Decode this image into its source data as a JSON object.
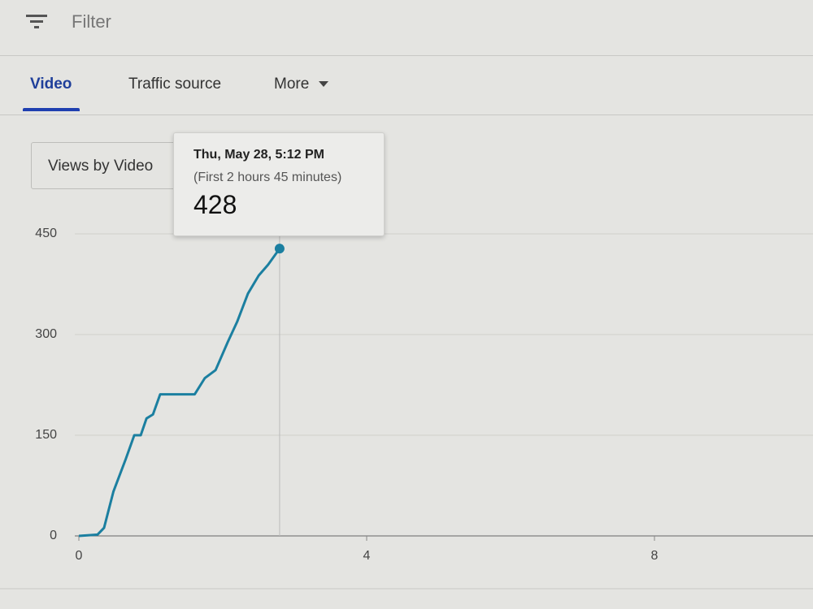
{
  "header": {
    "filter": "Filter"
  },
  "tabs": [
    "Video",
    "Traffic source",
    "More"
  ],
  "dropdown": "Views by Video",
  "tooltip": {
    "date": "Thu, May 28, 5:12 PM",
    "subtitle": "(First 2 hours 45 minutes)",
    "value": 428
  },
  "chart_data": {
    "type": "line",
    "x": [
      0,
      0.26,
      0.35,
      0.48,
      0.65,
      0.77,
      0.86,
      0.94,
      1.03,
      1.13,
      1.61,
      1.75,
      1.9,
      2.07,
      2.2,
      2.35,
      2.5,
      2.63,
      2.79
    ],
    "series": [
      {
        "color": "#1b7fa0",
        "values": [
          0,
          2,
          12,
          66,
          114,
          150,
          150,
          175,
          181,
          211,
          211,
          235,
          247,
          289,
          319,
          361,
          388,
          404,
          428
        ]
      }
    ],
    "xlim": [
      0,
      10
    ],
    "ylim": [
      0,
      450
    ],
    "xticks": [
      0,
      4,
      8
    ],
    "yticks": [
      0,
      150,
      300,
      450
    ],
    "grid": true
  }
}
